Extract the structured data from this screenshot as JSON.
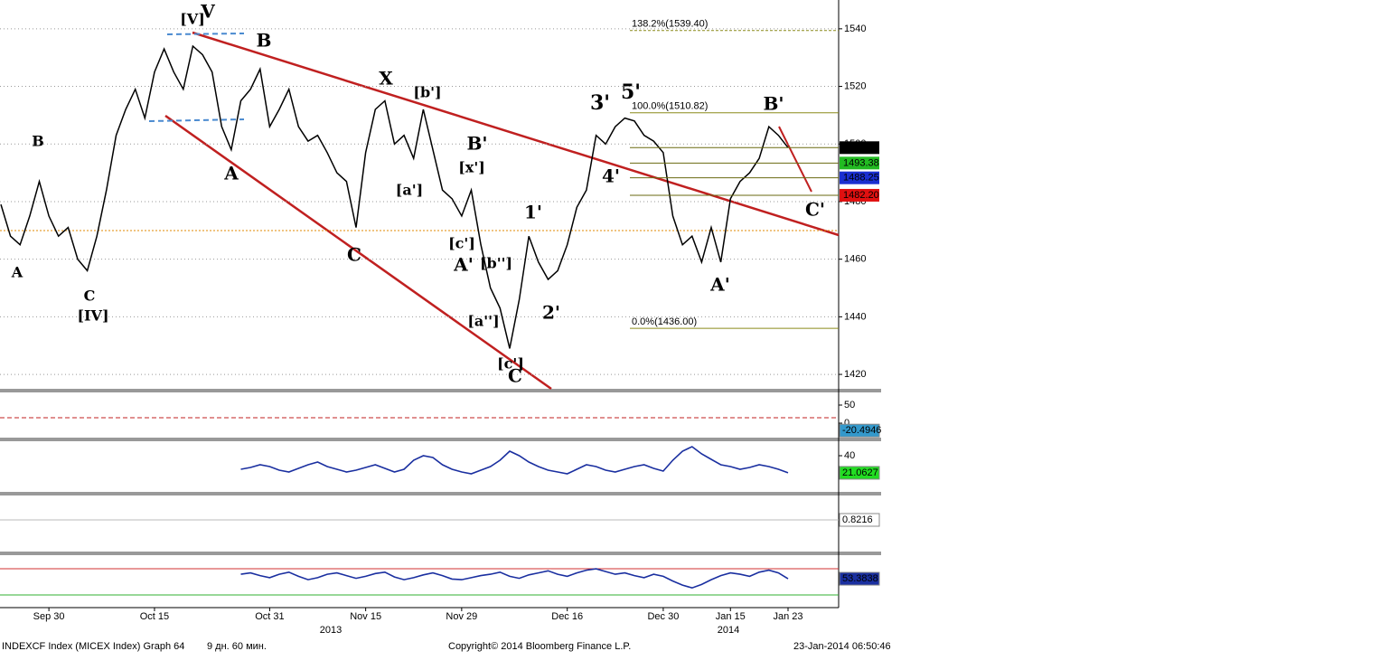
{
  "chart_data": [
    {
      "type": "line",
      "color": "#000000",
      "categories": [
        null,
        null,
        null,
        null,
        null,
        "Sep 30",
        null,
        null,
        null,
        null,
        null,
        null,
        null,
        null,
        null,
        null,
        "Oct 15",
        null,
        null,
        null,
        null,
        null,
        null,
        null,
        null,
        null,
        null,
        null,
        "Oct 31",
        null,
        null,
        null,
        null,
        null,
        null,
        null,
        null,
        null,
        "Nov 15",
        null,
        null,
        null,
        null,
        null,
        null,
        null,
        null,
        null,
        "Nov 29",
        null,
        null,
        null,
        null,
        null,
        null,
        null,
        null,
        null,
        null,
        "Dec 16",
        null,
        null,
        null,
        null,
        null,
        null,
        null,
        null,
        null,
        "Dec 30",
        null,
        null,
        null,
        null,
        null,
        null,
        "Jan 15",
        null,
        null,
        null,
        null,
        null,
        "Jan 23"
      ],
      "values": [
        1479,
        1468,
        1465,
        1475,
        1487,
        1475,
        1468,
        1471,
        1460,
        1456,
        1468,
        1484,
        1503,
        1512,
        1519,
        1509,
        1525,
        1533,
        1525,
        1519,
        1534,
        1531,
        1525,
        1506,
        1498,
        1515,
        1519,
        1526,
        1506,
        1512,
        1519,
        1506,
        1501,
        1503,
        1497,
        1490,
        1487,
        1471,
        1497,
        1512,
        1515,
        1500,
        1503,
        1495,
        1512,
        1498,
        1484,
        1481,
        1475,
        1484,
        1465,
        1450,
        1443,
        1429,
        1446,
        1468,
        1459,
        1453,
        1456,
        1465,
        1478,
        1484,
        1503,
        1500,
        1506,
        1509,
        1508,
        1503,
        1501,
        1497,
        1475,
        1465,
        1468,
        1459,
        1471,
        1459,
        1481,
        1487,
        1490,
        1495,
        1506,
        1503,
        1498.73
      ],
      "ylim": [
        1415,
        1550
      ],
      "yticks": [
        1420,
        1440,
        1460,
        1480,
        1500,
        1520,
        1540
      ],
      "grid": true,
      "year_labels": [
        "2013",
        "2014"
      ],
      "fib_levels": [
        {
          "label": "138.2%(1539.40)",
          "value": 1539.4
        },
        {
          "label": "100.0%(1510.82)",
          "value": 1510.82
        },
        {
          "label": "0.0%(1436.00)",
          "value": 1436.0
        }
      ],
      "fib_color": "#8a8a1a",
      "price_tags": [
        {
          "value": 1498.73,
          "color": "#000000",
          "text_color": "#ffffff"
        },
        {
          "value": 1493.38,
          "color": "#22bb22",
          "text_color": "#000000"
        },
        {
          "value": 1488.25,
          "color": "#1a2fd0",
          "text_color": "#ffffff"
        },
        {
          "value": 1482.2,
          "label": "1482.20",
          "color": "#e01010",
          "text_color": "#ffffff"
        }
      ],
      "annotations": [
        {
          "text": "[V]",
          "color": "#4aa84a"
        },
        {
          "text": "V",
          "color": "#5b8fd0"
        },
        {
          "text": "B",
          "color": "#5b8fd0"
        },
        {
          "text": "A",
          "color": "#5b8fd0"
        },
        {
          "text": "B",
          "color": "#b040b0"
        },
        {
          "text": "A",
          "color": "#b040b0"
        },
        {
          "text": "C",
          "color": "#b040b0"
        },
        {
          "text": "[IV]",
          "color": "#4aa84a"
        },
        {
          "text": "C",
          "color": "#5b8fd0"
        },
        {
          "text": "X",
          "color": "#5b8fd0"
        },
        {
          "text": "[b']",
          "color": "#8ab0e0"
        },
        {
          "text": "[a']",
          "color": "#8ab0e0"
        },
        {
          "text": "B'",
          "color": "#5b8fd0"
        },
        {
          "text": "[x']",
          "color": "#8ab0e0"
        },
        {
          "text": "[c']",
          "color": "#8ab0e0"
        },
        {
          "text": "A'",
          "color": "#5b8fd0"
        },
        {
          "text": "[b'']",
          "color": "#8ab0e0"
        },
        {
          "text": "[a'']",
          "color": "#8ab0e0"
        },
        {
          "text": "[c']",
          "color": "#8ab0e0"
        },
        {
          "text": "C",
          "color": "#5b8fd0"
        },
        {
          "text": "1'",
          "color": "#44aa33"
        },
        {
          "text": "2'",
          "color": "#44aa33"
        },
        {
          "text": "3'",
          "color": "#44aa33"
        },
        {
          "text": "5'",
          "color": "#44aa33"
        },
        {
          "text": "4'",
          "color": "#44aa33"
        },
        {
          "text": "B'",
          "color": "#b02020"
        },
        {
          "text": "A'",
          "color": "#b02020"
        },
        {
          "text": "C'",
          "color": "#b02020"
        }
      ]
    },
    {
      "type": "indicator",
      "ylim": [
        -40,
        85
      ],
      "yticks": [
        0,
        50
      ],
      "tag": {
        "value": -20.4946,
        "color": "#3399cc",
        "text_color": "#000000"
      }
    },
    {
      "type": "line",
      "color": "#1a2fa0",
      "ylim": [
        0,
        56
      ],
      "yticks": [
        40
      ],
      "values": [
        25,
        27,
        30,
        28,
        24,
        22,
        26,
        30,
        33,
        28,
        25,
        22,
        24,
        27,
        30,
        26,
        22,
        25,
        35,
        40,
        38,
        30,
        25,
        22,
        20,
        24,
        28,
        35,
        45,
        40,
        33,
        28,
        24,
        22,
        20,
        25,
        30,
        28,
        24,
        22,
        25,
        28,
        30,
        26,
        23,
        35,
        45,
        50,
        42,
        36,
        30,
        28,
        25,
        27,
        30,
        28,
        25,
        21.0627
      ],
      "tag": {
        "value": 21.0627,
        "color": "#22dd22",
        "text_color": "#000000"
      }
    },
    {
      "type": "indicator",
      "tag": {
        "value": 0.8216,
        "color": "#ffffff",
        "text_color": "#000000"
      }
    },
    {
      "type": "line",
      "color": "#1a2fa0",
      "ylim": [
        11,
        88
      ],
      "values": [
        60,
        62,
        58,
        55,
        60,
        63,
        57,
        52,
        55,
        60,
        62,
        58,
        54,
        57,
        61,
        63,
        56,
        52,
        55,
        59,
        62,
        58,
        53,
        52,
        55,
        58,
        60,
        63,
        57,
        54,
        59,
        62,
        65,
        60,
        57,
        62,
        66,
        68,
        64,
        60,
        62,
        58,
        55,
        60,
        57,
        50,
        44,
        40,
        45,
        52,
        58,
        62,
        60,
        57,
        63,
        66,
        62,
        53.3838
      ],
      "tag": {
        "value": 53.3838,
        "color": "#1a2fa0",
        "text_color": "#ffffff"
      }
    }
  ],
  "footer": {
    "left": "INDEXCF Index (MICEX Index) Graph 64",
    "period": "9 дн. 60 мин.",
    "copyright": "Copyright© 2014 Bloomberg Finance L.P.",
    "timestamp": "23-Jan-2014 06:50:46"
  }
}
